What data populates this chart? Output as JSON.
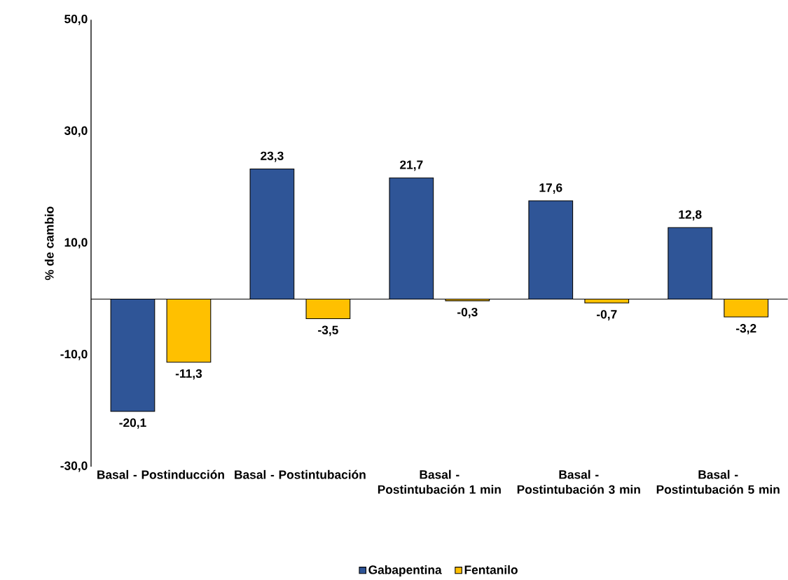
{
  "chart_data": {
    "type": "bar",
    "ylabel": "% de cambio",
    "categories": [
      "Basal - Postinducción",
      "Basal - Postintubación",
      "Basal - Postintubación 1 min",
      "Basal - Postintubación 3 min",
      "Basal - Postintubación 5 min"
    ],
    "series": [
      {
        "name": "Gabapentina",
        "color": "#2f5597",
        "values": [
          -20.1,
          23.3,
          21.7,
          17.6,
          12.8
        ],
        "value_labels": [
          "-20,1",
          "23,3",
          "21,7",
          "17,6",
          "12,8"
        ]
      },
      {
        "name": "Fentanilo",
        "color": "#ffc000",
        "values": [
          -11.3,
          -3.5,
          -0.3,
          -0.7,
          -3.2
        ],
        "value_labels": [
          "-11,3",
          "-3,5",
          "-0,3",
          "-0,7",
          "-3,2"
        ]
      }
    ],
    "ylim": [
      -30,
      50
    ],
    "yticks": [
      {
        "value": -30,
        "label": "-30,0"
      },
      {
        "value": -10,
        "label": "-10,0"
      },
      {
        "value": 10,
        "label": "10,0"
      },
      {
        "value": 30,
        "label": "30,0"
      },
      {
        "value": 50,
        "label": "50,0"
      }
    ],
    "legend": "bottom"
  }
}
